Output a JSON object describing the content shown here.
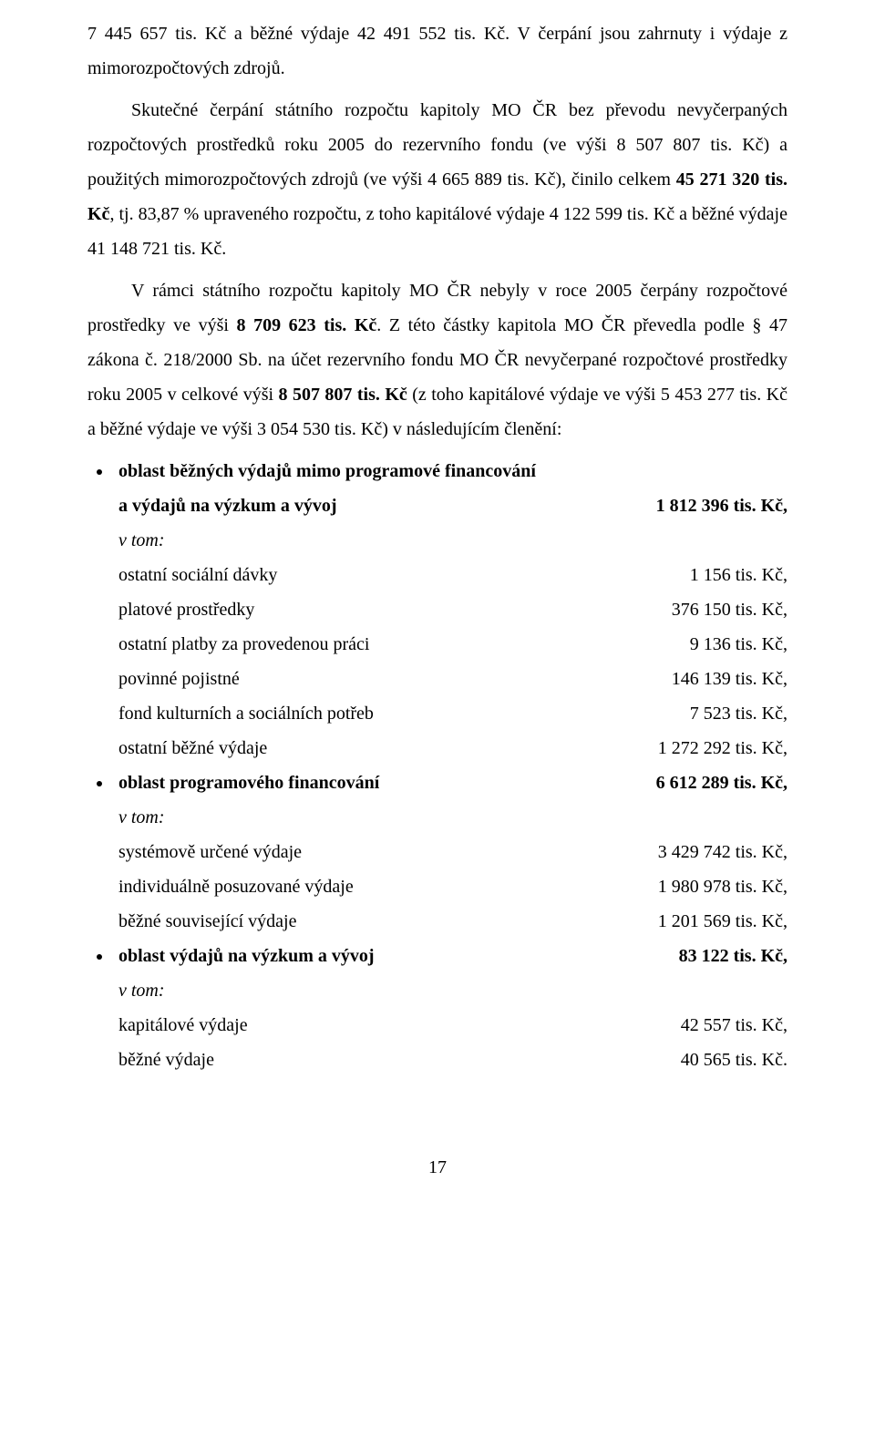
{
  "paragraphs": {
    "p1": "7 445 657 tis. Kč a běžné výdaje 42 491 552 tis. Kč. V čerpání jsou zahrnuty i výdaje z mimorozpočtových zdrojů.",
    "p2_part1": "Skutečné čerpání státního rozpočtu kapitoly MO ČR bez převodu nevyčerpaných rozpočtových prostředků roku 2005 do rezervního fondu (ve výši 8 507 807 tis. Kč) a použitých mimorozpočtových zdrojů (ve výši 4 665 889 tis. Kč), činilo celkem ",
    "p2_bold": "45 271 320 tis. Kč",
    "p2_part2": ", tj. 83,87 % upraveného rozpočtu, z toho kapitálové výdaje 4 122 599 tis. Kč a běžné výdaje 41 148 721 tis. Kč.",
    "p3_part1": "V rámci státního rozpočtu kapitoly MO ČR nebyly v roce 2005 čerpány rozpočtové prostředky ve výši ",
    "p3_bold1": "8 709 623 tis. Kč",
    "p3_part2": ". Z této částky kapitola MO ČR převedla podle § 47 zákona č. 218/2000 Sb. na účet rezervního fondu MO ČR nevyčerpané rozpočtové prostředky roku 2005 v celkové výši ",
    "p3_bold2": "8 507 807 tis. Kč",
    "p3_part3": " (z toho kapitálové výdaje ve výši 5 453 277 tis. Kč a běžné výdaje ve výši 3 054 530 tis. Kč) v následujícím členění:"
  },
  "sections": [
    {
      "header_lines": [
        "oblast běžných výdajů mimo programové financování",
        "a výdajů na výzkum a vývoj"
      ],
      "header_value": "1  812 396 tis. Kč,",
      "vtom": "v tom:",
      "items": [
        {
          "label": "ostatní sociální dávky",
          "value": "1 156 tis. Kč,"
        },
        {
          "label": "platové prostředky",
          "value": "376 150 tis. Kč,"
        },
        {
          "label": "ostatní platby za provedenou práci",
          "value": "9 136 tis. Kč,"
        },
        {
          "label": " povinné pojistné",
          "value": "146 139 tis. Kč,"
        },
        {
          "label": " fond kulturních a sociálních potřeb",
          "value": "7 523 tis. Kč,"
        },
        {
          "label": " ostatní běžné výdaje",
          "value": "1 272 292 tis. Kč,"
        }
      ]
    },
    {
      "header_lines": [
        "oblast programového financování"
      ],
      "header_value": "6 612 289 tis. Kč,",
      "vtom": "v tom:",
      "items": [
        {
          "label": " systémově určené výdaje",
          "value": "3 429 742 tis. Kč,"
        },
        {
          "label": "individuálně posuzované výdaje",
          "value": "1 980 978 tis. Kč,"
        },
        {
          "label": " běžné související výdaje",
          "value": "1 201 569 tis. Kč,"
        }
      ]
    },
    {
      "header_lines": [
        "oblast výdajů na výzkum a vývoj"
      ],
      "header_value": "83 122 tis. Kč,",
      "vtom": "v tom:",
      "items": [
        {
          "label": " kapitálové výdaje",
          "value": "42 557 tis. Kč,"
        },
        {
          "label": " běžné výdaje",
          "value": "40 565 tis. Kč."
        }
      ]
    }
  ],
  "page_number": "17"
}
